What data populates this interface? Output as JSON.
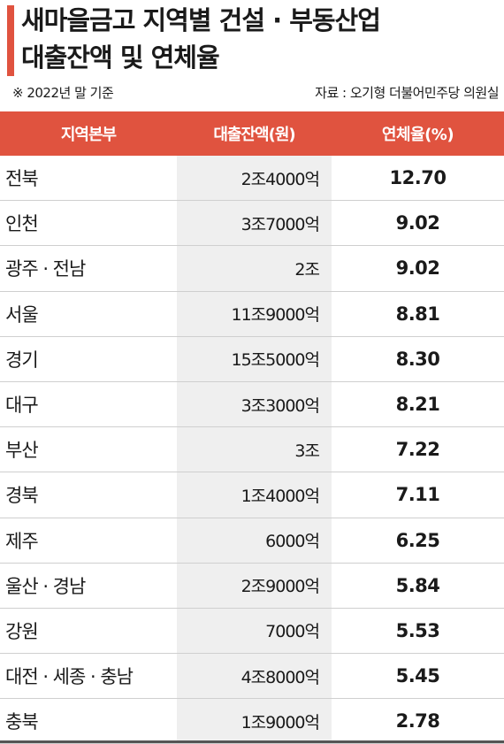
{
  "header": {
    "title_line1": "새마을금고 지역별 건설 · 부동산업",
    "title_line2": "대출잔액 및 연체율",
    "note_left": "※ 2022년 말 기준",
    "note_right": "자료 : 오기형 더불어민주당 의원실",
    "accent_color": "#e0533f"
  },
  "chart_data": {
    "type": "table",
    "title": "새마을금고 지역별 건설 · 부동산업 대출잔액 및 연체율",
    "columns": [
      "지역본부",
      "대출잔액(원)",
      "연체율(%)"
    ],
    "rows": [
      {
        "region": "전북",
        "balance": "2조4000억",
        "rate": "12.70"
      },
      {
        "region": "인천",
        "balance": "3조7000억",
        "rate": "9.02"
      },
      {
        "region": "광주 · 전남",
        "balance": "2조",
        "rate": "9.02"
      },
      {
        "region": "서울",
        "balance": "11조9000억",
        "rate": "8.81"
      },
      {
        "region": "경기",
        "balance": "15조5000억",
        "rate": "8.30"
      },
      {
        "region": "대구",
        "balance": "3조3000억",
        "rate": "8.21"
      },
      {
        "region": "부산",
        "balance": "3조",
        "rate": "7.22"
      },
      {
        "region": "경북",
        "balance": "1조4000억",
        "rate": "7.11"
      },
      {
        "region": "제주",
        "balance": "6000억",
        "rate": "6.25"
      },
      {
        "region": "울산 · 경남",
        "balance": "2조9000억",
        "rate": "5.84"
      },
      {
        "region": "강원",
        "balance": "7000억",
        "rate": "5.53"
      },
      {
        "region": "대전 · 세종 · 충남",
        "balance": "4조8000억",
        "rate": "5.45"
      },
      {
        "region": "충북",
        "balance": "1조9000억",
        "rate": "2.78"
      }
    ]
  }
}
